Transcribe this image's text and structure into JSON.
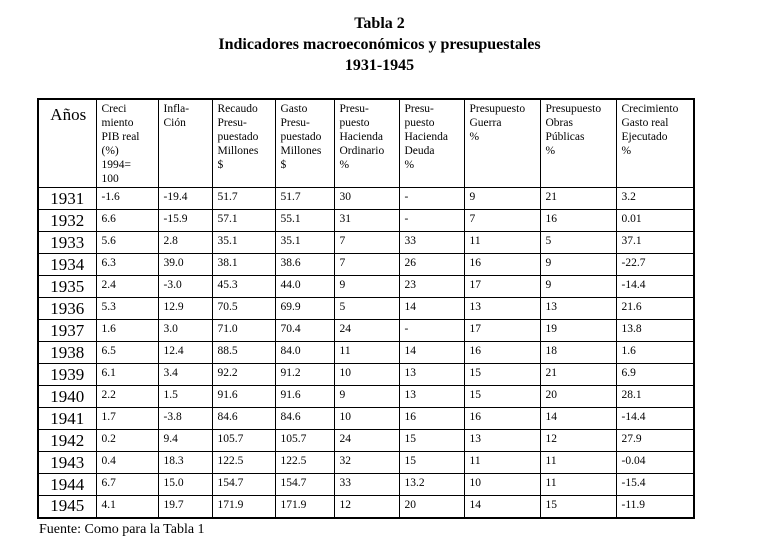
{
  "title": {
    "line1": "Tabla 2",
    "line2": "Indicadores macroeconómicos y presupuestales",
    "line3": "1931-1945"
  },
  "table": {
    "columns": [
      {
        "key": "anios",
        "header": "Años"
      },
      {
        "key": "pib",
        "header": "Creci\nmiento\nPIB real\n(%)\n1994=\n100"
      },
      {
        "key": "inflacion",
        "header": "Infla-\nCión"
      },
      {
        "key": "recaudo",
        "header": "Recaudo\nPresu-\npuestado\nMillones\n$"
      },
      {
        "key": "gasto",
        "header": "Gasto\nPresu-\npuestado\nMillones\n$"
      },
      {
        "key": "hacienda-ordinario",
        "header": "Presu-\npuesto\nHacienda\nOrdinario\n%"
      },
      {
        "key": "hacienda-deuda",
        "header": "Presu-\npuesto\nHacienda\nDeuda\n%"
      },
      {
        "key": "guerra",
        "header": "Presupuesto\nGuerra\n%"
      },
      {
        "key": "obras-publicas",
        "header": "Presupuesto\nObras\nPúblicas\n%"
      },
      {
        "key": "crecimiento-gasto",
        "header": "Crecimiento\nGasto real\nEjecutado\n%"
      }
    ],
    "rows": [
      [
        "1931",
        "-1.6",
        "-19.4",
        "51.7",
        "51.7",
        "30",
        "-",
        "9",
        "21",
        "3.2"
      ],
      [
        "1932",
        "6.6",
        "-15.9",
        "57.1",
        "55.1",
        "31",
        "-",
        "7",
        "16",
        "0.01"
      ],
      [
        "1933",
        "5.6",
        "2.8",
        "35.1",
        "35.1",
        "7",
        "33",
        "11",
        "5",
        "37.1"
      ],
      [
        "1934",
        "6.3",
        "39.0",
        "38.1",
        "38.6",
        "7",
        "26",
        "16",
        "9",
        "-22.7"
      ],
      [
        "1935",
        "2.4",
        "-3.0",
        "45.3",
        "44.0",
        "9",
        "23",
        "17",
        "9",
        "-14.4"
      ],
      [
        "1936",
        "5.3",
        "12.9",
        "70.5",
        "69.9",
        "5",
        "14",
        "13",
        "13",
        "21.6"
      ],
      [
        "1937",
        "1.6",
        "3.0",
        "71.0",
        "70.4",
        "24",
        "-",
        "17",
        "19",
        "13.8"
      ],
      [
        "1938",
        "6.5",
        "12.4",
        "88.5",
        "84.0",
        "11",
        "14",
        "16",
        "18",
        "1.6"
      ],
      [
        "1939",
        "6.1",
        "3.4",
        "92.2",
        "91.2",
        "10",
        "13",
        "15",
        "21",
        "6.9"
      ],
      [
        "1940",
        "2.2",
        "1.5",
        "91.6",
        "91.6",
        "9",
        "13",
        "15",
        "20",
        "28.1"
      ],
      [
        "1941",
        "1.7",
        "-3.8",
        "84.6",
        "84.6",
        "10",
        "16",
        "16",
        "14",
        "-14.4"
      ],
      [
        "1942",
        "0.2",
        "9.4",
        "105.7",
        "105.7",
        "24",
        "15",
        "13",
        "12",
        "27.9"
      ],
      [
        "1943",
        "0.4",
        "18.3",
        "122.5",
        "122.5",
        "32",
        "15",
        "11",
        "11",
        "-0.04"
      ],
      [
        "1944",
        "6.7",
        "15.0",
        "154.7",
        "154.7",
        "33",
        "13.2",
        "10",
        "11",
        "-15.4"
      ],
      [
        "1945",
        "4.1",
        "19.7",
        "171.9",
        "171.9",
        "12",
        "20",
        "14",
        "15",
        "-11.9"
      ]
    ]
  },
  "footer": {
    "source": "Fuente: Como para la Tabla 1"
  }
}
